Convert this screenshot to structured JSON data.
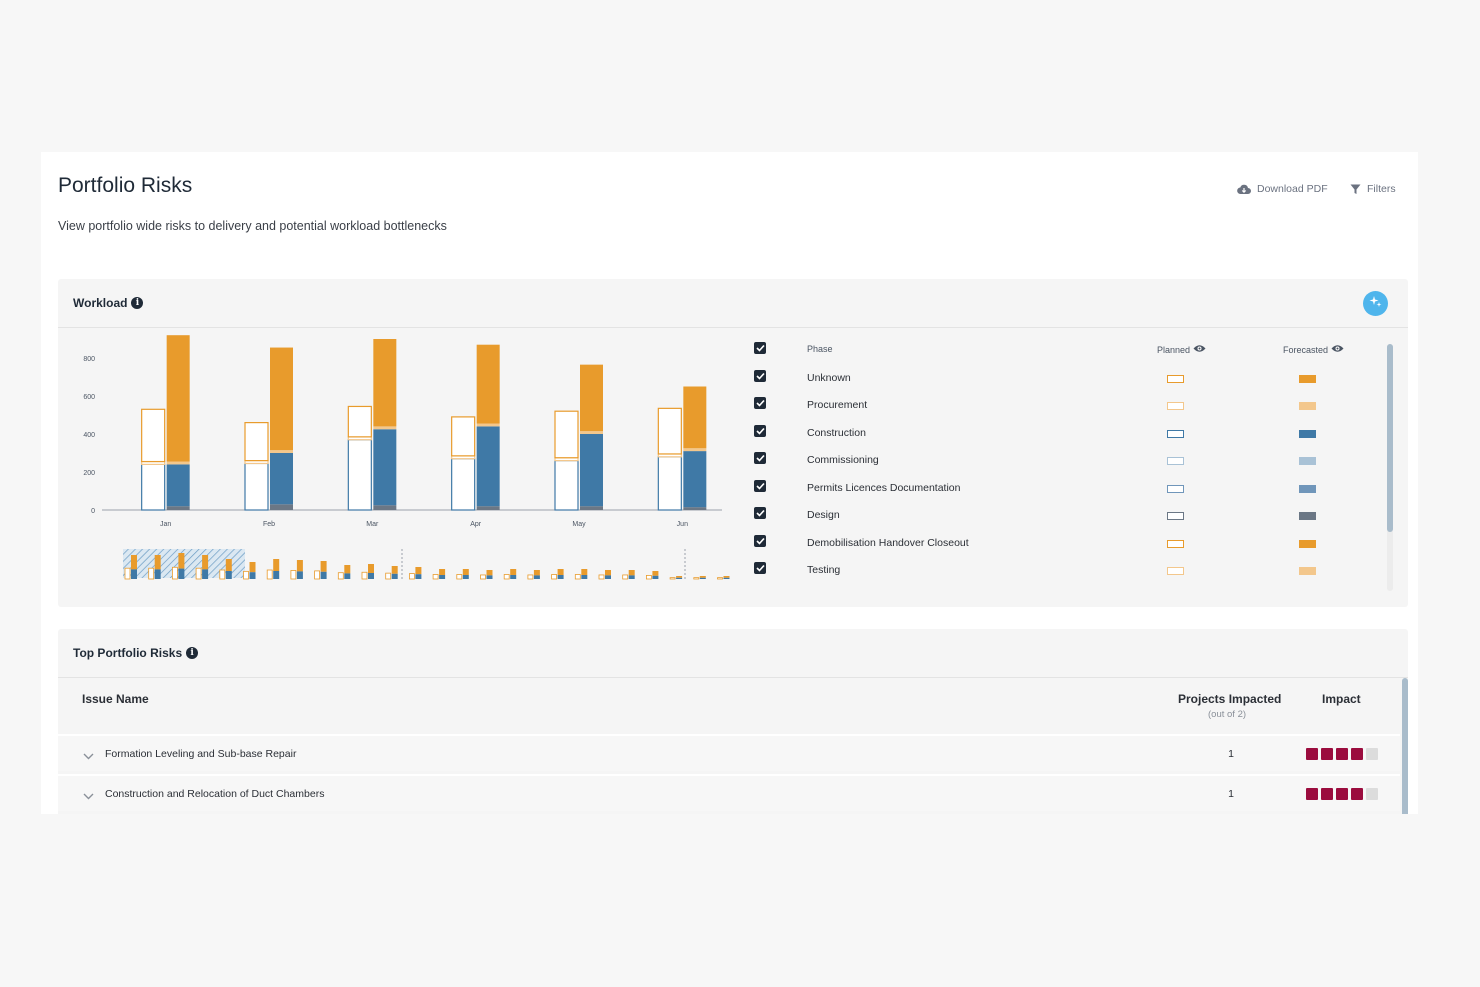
{
  "header": {
    "title": "Portfolio Risks",
    "subtitle": "View portfolio wide risks to delivery and potential workload bottlenecks",
    "download_label": "Download PDF",
    "filters_label": "Filters"
  },
  "workload": {
    "title": "Workload",
    "legend": {
      "phase_header": "Phase",
      "planned_header": "Planned",
      "forecasted_header": "Forecasted",
      "items": [
        {
          "label": "Unknown",
          "color": "#e89b2c",
          "checked": true
        },
        {
          "label": "Procurement",
          "color": "#f3c78c",
          "checked": true
        },
        {
          "label": "Construction",
          "color": "#3f79a6",
          "checked": true
        },
        {
          "label": "Commissioning",
          "color": "#a9c2d6",
          "checked": true
        },
        {
          "label": "Permits Licences Documentation",
          "color": "#7096ba",
          "checked": true
        },
        {
          "label": "Design",
          "color": "#6b7785",
          "checked": true
        },
        {
          "label": "Demobilisation Handover Closeout",
          "color": "#e89b2c",
          "checked": true
        },
        {
          "label": "Testing",
          "color": "#f3c78c",
          "checked": true
        }
      ]
    }
  },
  "chart_data": {
    "type": "bar",
    "categories": [
      "Jan",
      "Feb",
      "Mar",
      "Apr",
      "May",
      "Jun"
    ],
    "ylim": [
      0,
      900
    ],
    "yticks": [
      0,
      200,
      400,
      600,
      800
    ],
    "series": [
      {
        "name": "Planned",
        "stack": [
          {
            "phase": "Construction",
            "values": [
              240,
              245,
              370,
              270,
              260,
              280
            ]
          },
          {
            "phase": "Procurement",
            "values": [
              15,
              15,
              15,
              15,
              15,
              15
            ]
          },
          {
            "phase": "Unknown",
            "values": [
              275,
              200,
              160,
              205,
              245,
              240
            ]
          }
        ]
      },
      {
        "name": "Forecasted",
        "stack": [
          {
            "phase": "Design",
            "values": [
              20,
              30,
              25,
              20,
              20,
              15
            ]
          },
          {
            "phase": "Construction",
            "values": [
              220,
              270,
              400,
              420,
              380,
              295
            ]
          },
          {
            "phase": "Procurement",
            "values": [
              15,
              15,
              15,
              15,
              15,
              15
            ]
          },
          {
            "phase": "Unknown",
            "values": [
              665,
              540,
              460,
              415,
              350,
              325
            ]
          }
        ]
      }
    ],
    "overview_note": "mini overview strip below chart"
  },
  "risks": {
    "title": "Top Portfolio Risks",
    "columns": {
      "issue_name": "Issue Name",
      "projects_impacted": "Projects Impacted",
      "projects_sub": "(out of 2)",
      "impact": "Impact"
    },
    "rows": [
      {
        "name": "Formation Leveling and Sub-base Repair",
        "count": "1",
        "impact": 4
      },
      {
        "name": "Construction and Relocation of Duct Chambers",
        "count": "1",
        "impact": 4
      }
    ],
    "impact_color": "#9b0c3e",
    "impact_empty_color": "#dcdcdc"
  }
}
